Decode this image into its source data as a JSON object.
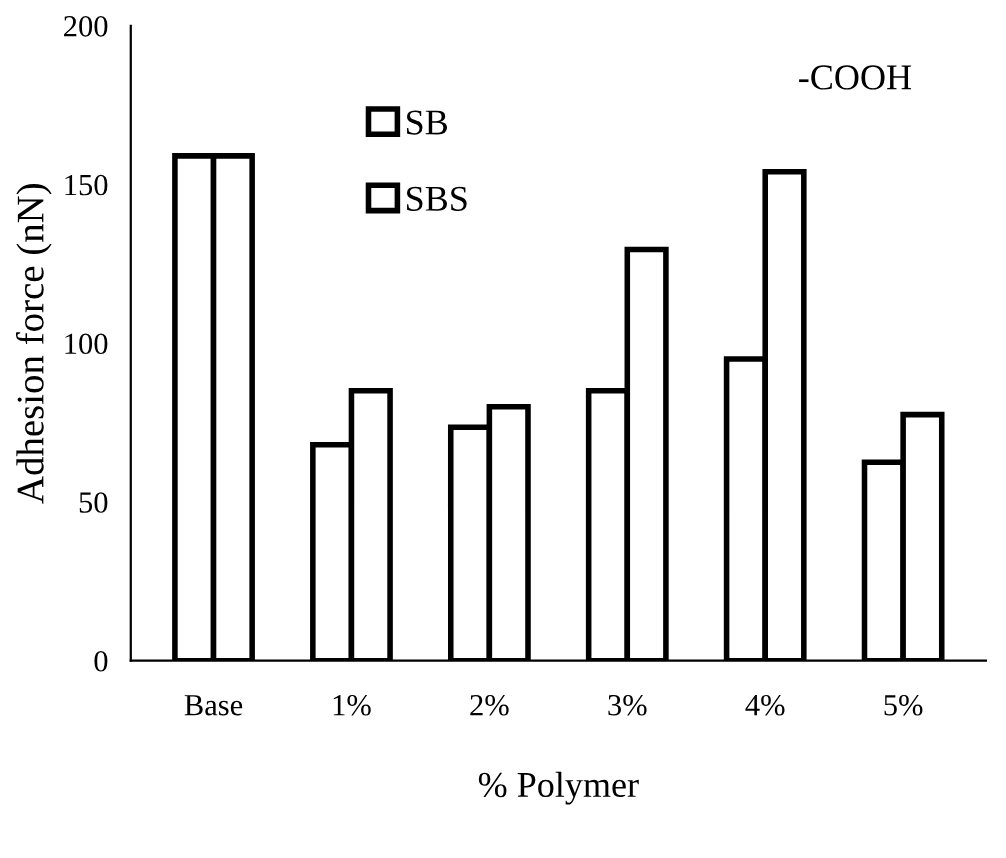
{
  "chart_data": {
    "type": "bar",
    "xlabel": "% Polymer",
    "ylabel": "Adhesion force (nN)",
    "categories": [
      "Base",
      "1%",
      "2%",
      "3%",
      "4%",
      "5%"
    ],
    "series": [
      {
        "name": "SB",
        "color": "#ffffff",
        "values": [
          159,
          68,
          73.5,
          85,
          95,
          62.5
        ]
      },
      {
        "name": "SBS",
        "color": "#ffffff",
        "values": [
          159,
          85,
          80,
          129.5,
          154,
          77.5
        ]
      }
    ],
    "ylim": [
      0,
      200
    ],
    "yticks": [
      0,
      50,
      100,
      150,
      200
    ],
    "grid": false,
    "legend": "top left",
    "annotations": [
      "-COOH"
    ]
  }
}
